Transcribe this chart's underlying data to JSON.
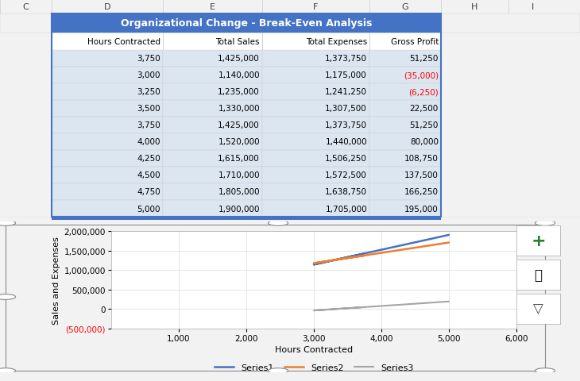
{
  "title": "Organizational Change - Break-Even Analysis",
  "title_bg": "#4472C4",
  "title_fg": "#FFFFFF",
  "col_headers": [
    "Hours Contracted",
    "Total Sales",
    "Total Expenses",
    "Gross Profit"
  ],
  "rows": [
    [
      3750,
      1425000,
      1373750,
      51250
    ],
    [
      3000,
      1140000,
      1175000,
      -35000
    ],
    [
      3250,
      1235000,
      1241250,
      -6250
    ],
    [
      3500,
      1330000,
      1307500,
      22500
    ],
    [
      3750,
      1425000,
      1373750,
      51250
    ],
    [
      4000,
      1520000,
      1440000,
      80000
    ],
    [
      4250,
      1615000,
      1506250,
      108750
    ],
    [
      4500,
      1710000,
      1572500,
      137500
    ],
    [
      4750,
      1805000,
      1638750,
      166250
    ],
    [
      5000,
      1900000,
      1705000,
      195000
    ]
  ],
  "col_letters": [
    "C",
    "D",
    "E",
    "F",
    "G",
    "H",
    "I"
  ],
  "series1_color": "#4472C4",
  "series2_color": "#ED7D31",
  "series3_color": "#A5A5A5",
  "series1_label": "Series1",
  "series2_label": "Series2",
  "series3_label": "Series3",
  "chart_xlabel": "Hours Contracted",
  "chart_ylabel": "Sales and Expenses",
  "x_min": 0,
  "x_max": 6000,
  "y_min": -500000,
  "y_max": 2000000,
  "x_ticks": [
    1000,
    2000,
    3000,
    4000,
    5000,
    6000
  ],
  "y_ticks": [
    -500000,
    0,
    500000,
    1000000,
    1500000,
    2000000
  ],
  "negative_color": "#FF0000",
  "positive_color": "#000000",
  "border_color": "#4472C4",
  "excel_bg": "#F2F2F2",
  "grid_color": "#D9D9D9",
  "cell_bg_light": "#DCE6F1",
  "col_header_bg": "#FFFFFF",
  "row_line_color": "#CCCCCC",
  "col_line_color": "#C0C0C0",
  "letter_row_bg": "#F2F2F2",
  "letter_row_border": "#CCCCCC",
  "handle_color": "#888888",
  "chart_border_color": "#888888",
  "purple_border": "#7030A0",
  "blue_bar_color": "#4472C4"
}
